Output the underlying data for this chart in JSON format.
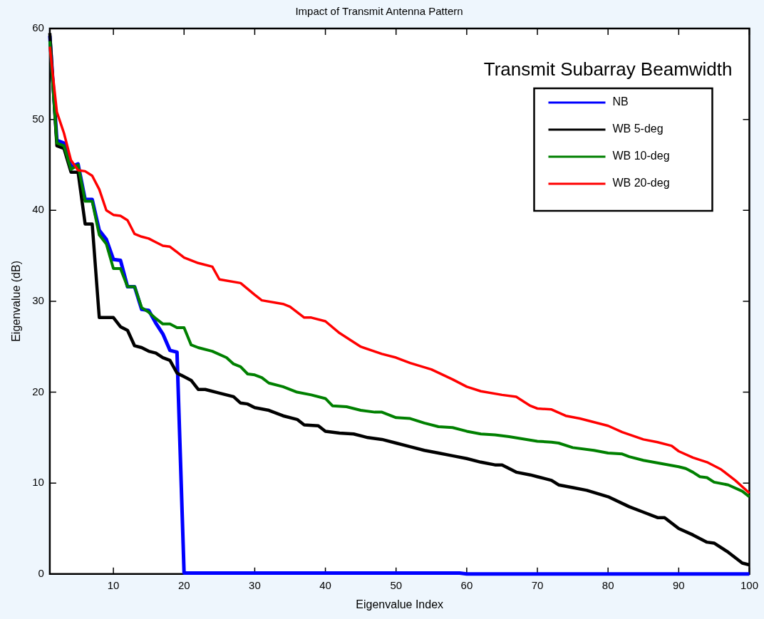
{
  "chart_data": {
    "type": "line",
    "title": "Impact of Transmit Antenna Pattern",
    "xlabel": "Eigenvalue Index",
    "ylabel": "Eigenvalue (dB)",
    "legend_title": "Transmit Subarray Beamwidth",
    "legend": "top right",
    "grid": false,
    "marker": "none",
    "line_style": "solid",
    "xlim": [
      1,
      100
    ],
    "xticks": [
      10,
      20,
      30,
      40,
      50,
      60,
      70,
      80,
      90,
      100
    ],
    "ylim": [
      0,
      60
    ],
    "yticks": [
      0,
      10,
      20,
      30,
      40,
      50,
      60
    ],
    "series": [
      {
        "name": "NB",
        "color": "#0000ff",
        "x": [
          1,
          2,
          3,
          4,
          5,
          6,
          7,
          8,
          9,
          10,
          11,
          12,
          13,
          14,
          15,
          16,
          17,
          18,
          19,
          20,
          59,
          60,
          100
        ],
        "values": [
          59.2,
          47.7,
          47.4,
          44.8,
          45.1,
          41.2,
          41.2,
          37.8,
          36.8,
          34.6,
          34.5,
          31.6,
          31.6,
          29.1,
          29,
          27.6,
          26.4,
          24.6,
          24.4,
          0.1,
          0.1,
          0,
          0
        ]
      },
      {
        "name": "WB 5-deg",
        "color": "#000000",
        "x": [
          1,
          2,
          3,
          4,
          5,
          6,
          7,
          8,
          9,
          10,
          11,
          12,
          13,
          14,
          15,
          16,
          17,
          18,
          19,
          20,
          21,
          22,
          23,
          25,
          27,
          28,
          29,
          30,
          32,
          34,
          36,
          37,
          39,
          40,
          42,
          44,
          46,
          48,
          50,
          52,
          54,
          56,
          58,
          60,
          62,
          64,
          65,
          67,
          69,
          70,
          72,
          73,
          75,
          77,
          80,
          83,
          85,
          87,
          88,
          90,
          92,
          94,
          95,
          97,
          99,
          100
        ],
        "values": [
          59.5,
          47.1,
          46.8,
          44.2,
          44.2,
          38.5,
          38.5,
          28.2,
          28.2,
          28.2,
          27.2,
          26.8,
          25.1,
          24.9,
          24.5,
          24.3,
          23.8,
          23.5,
          22.1,
          21.7,
          21.3,
          20.3,
          20.3,
          19.9,
          19.5,
          18.8,
          18.7,
          18.3,
          18,
          17.4,
          17,
          16.4,
          16.3,
          15.7,
          15.5,
          15.4,
          15,
          14.8,
          14.4,
          14,
          13.6,
          13.3,
          13,
          12.7,
          12.3,
          12,
          12,
          11.2,
          10.9,
          10.7,
          10.3,
          9.8,
          9.5,
          9.2,
          8.5,
          7.4,
          6.8,
          6.2,
          6.2,
          5,
          4.3,
          3.5,
          3.4,
          2.4,
          1.2,
          1
        ]
      },
      {
        "name": "WB 10-deg",
        "color": "#008000",
        "x": [
          1,
          2,
          3,
          4,
          5,
          6,
          7,
          8,
          9,
          10,
          11,
          12,
          13,
          14,
          15,
          16,
          17,
          18,
          19,
          20,
          21,
          22,
          24,
          26,
          27,
          28,
          29,
          30,
          31,
          32,
          34,
          36,
          38,
          40,
          41,
          43,
          45,
          47,
          48,
          50,
          52,
          54,
          56,
          58,
          60,
          62,
          64,
          66,
          70,
          72,
          73,
          75,
          78,
          80,
          82,
          83,
          85,
          90,
          91,
          92,
          93,
          94,
          95,
          97,
          99,
          100
        ],
        "values": [
          58.6,
          47.4,
          47.1,
          44.5,
          45,
          41,
          41,
          37.3,
          36.3,
          33.6,
          33.6,
          31.6,
          31.6,
          29.3,
          28.8,
          28.1,
          27.5,
          27.5,
          27.1,
          27.1,
          25.2,
          24.9,
          24.5,
          23.8,
          23.1,
          22.8,
          22,
          21.9,
          21.6,
          21,
          20.6,
          20,
          19.7,
          19.3,
          18.5,
          18.4,
          18,
          17.8,
          17.8,
          17.2,
          17.1,
          16.6,
          16.2,
          16.1,
          15.7,
          15.4,
          15.3,
          15.1,
          14.6,
          14.5,
          14.4,
          13.9,
          13.6,
          13.3,
          13.2,
          12.9,
          12.5,
          11.8,
          11.6,
          11.2,
          10.7,
          10.6,
          10.1,
          9.8,
          9.1,
          8.5
        ]
      },
      {
        "name": "WB 20-deg",
        "color": "#ff0000",
        "x": [
          1,
          2,
          3,
          4,
          5,
          6,
          7,
          8,
          9,
          10,
          11,
          12,
          13,
          14,
          15,
          16,
          17,
          18,
          19,
          20,
          22,
          24,
          25,
          28,
          30,
          31,
          34,
          35,
          37,
          38,
          40,
          42,
          45,
          48,
          50,
          52,
          55,
          58,
          60,
          62,
          65,
          67,
          69,
          70,
          72,
          74,
          76,
          80,
          82,
          85,
          87,
          89,
          90,
          92,
          94,
          96,
          98,
          100
        ],
        "values": [
          58,
          50.8,
          48.5,
          45.5,
          44.4,
          44.3,
          43.8,
          42.3,
          40,
          39.5,
          39.4,
          38.9,
          37.4,
          37.1,
          36.9,
          36.5,
          36.1,
          36,
          35.4,
          34.8,
          34.2,
          33.8,
          32.4,
          32,
          30.7,
          30.1,
          29.7,
          29.4,
          28.2,
          28.2,
          27.8,
          26.5,
          25,
          24.2,
          23.8,
          23.2,
          22.5,
          21.4,
          20.6,
          20.1,
          19.7,
          19.5,
          18.5,
          18.2,
          18.1,
          17.4,
          17.1,
          16.3,
          15.6,
          14.8,
          14.5,
          14.1,
          13.5,
          12.8,
          12.3,
          11.5,
          10.3,
          8.9
        ]
      }
    ]
  }
}
